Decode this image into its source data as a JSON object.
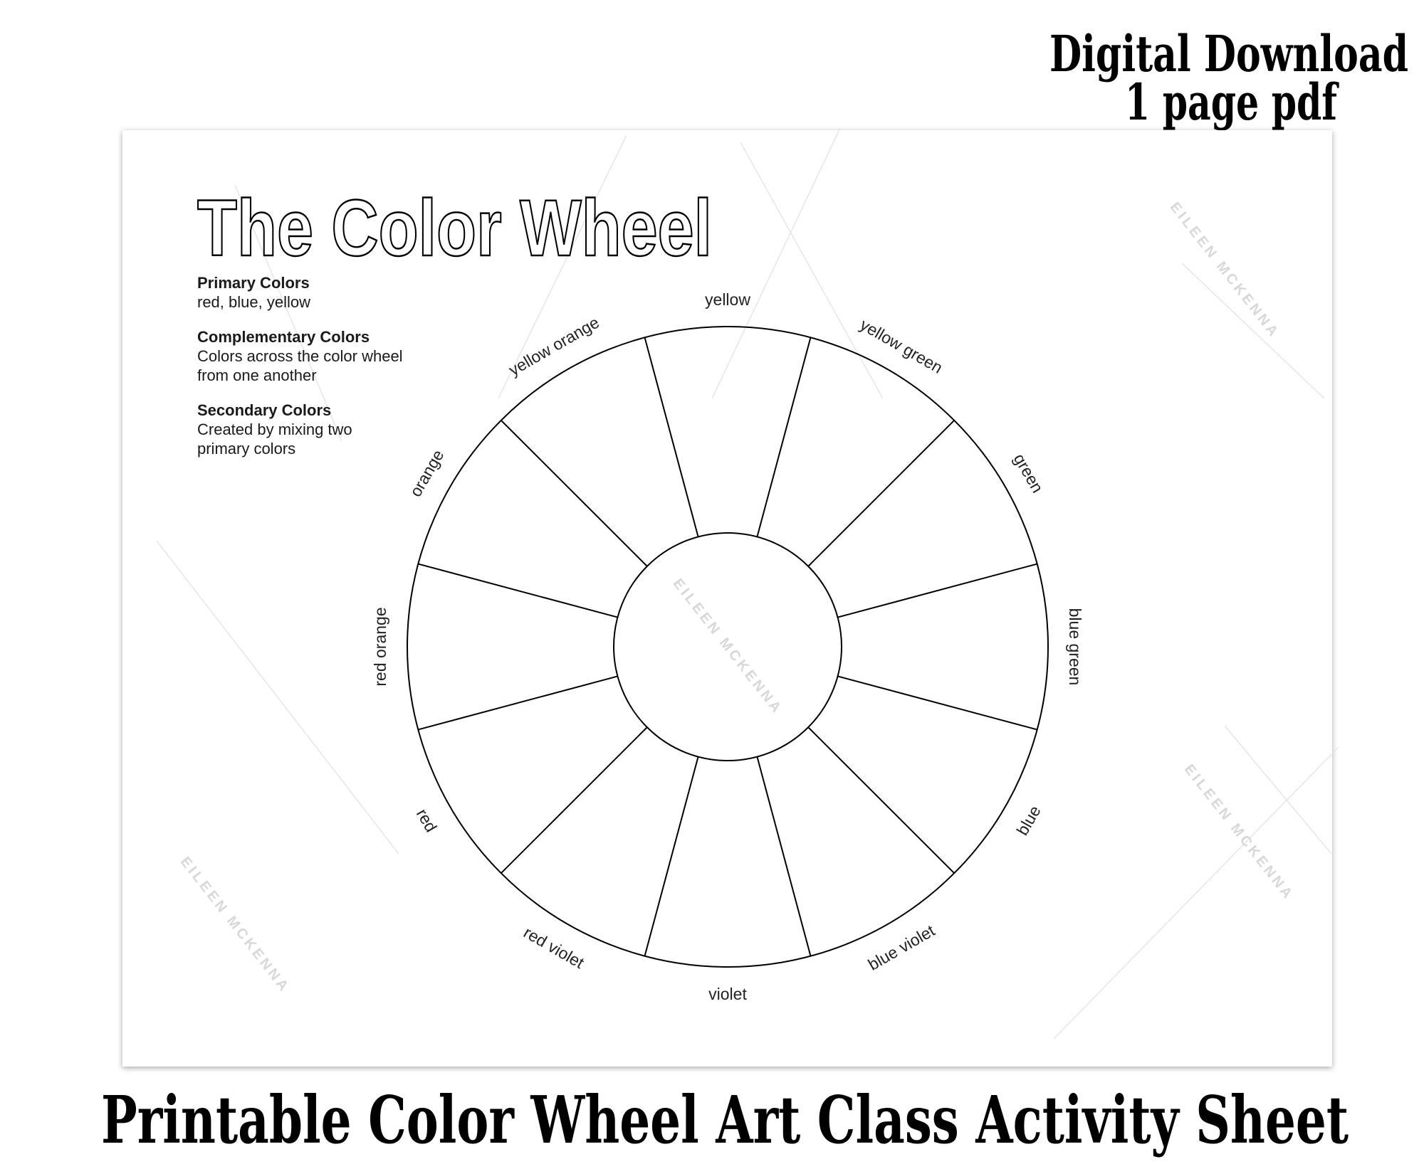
{
  "header": {
    "line1": "Digital Download",
    "line2": "1 page pdf"
  },
  "sheet": {
    "title": "The Color Wheel",
    "info": [
      {
        "heading": "Primary Colors",
        "lines": [
          "red, blue, yellow"
        ]
      },
      {
        "heading": "Complementary Colors",
        "lines": [
          "Colors across the color wheel",
          "from one another"
        ]
      },
      {
        "heading": "Secondary Colors",
        "lines": [
          "Created by mixing two",
          "primary colors"
        ]
      }
    ],
    "wheel": {
      "segments": [
        "yellow",
        "yellow green",
        "green",
        "blue green",
        "blue",
        "blue violet",
        "violet",
        "red violet",
        "red",
        "red orange",
        "orange",
        "yellow orange"
      ]
    },
    "watermark": "EILEEN MCKENNA"
  },
  "footer": {
    "caption": "Printable Color Wheel Art Class Activity Sheet"
  },
  "colors": {
    "ink": "#000000",
    "page": "#ffffff",
    "watermark": "#d8d8d8"
  }
}
